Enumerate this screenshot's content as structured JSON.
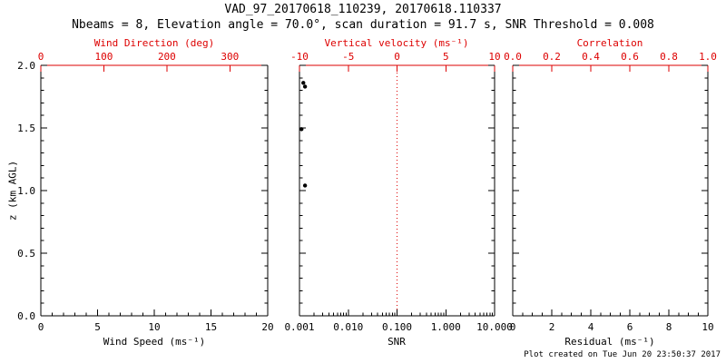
{
  "title": "VAD_97_20170618_110239, 20170618.110337",
  "subtitle": "Nbeams = 8, Elevation angle = 70.0°, scan duration = 91.7 s, SNR Threshold = 0.008",
  "footer": "Plot created on Tue Jun 20 23:50:37 2017",
  "colors": {
    "axis": "#000000",
    "secondary_axis": "#dd0000",
    "point": "#000000",
    "background": "#ffffff"
  },
  "chart_data": {
    "type": "scatter",
    "legend": "none",
    "grid": "off",
    "y_axis": {
      "label": "z (km AGL)",
      "min": 0,
      "max": 2,
      "ticks": [
        0,
        0.5,
        1,
        1.5,
        2
      ],
      "tick_labels": [
        "0.0",
        "0.5",
        "1.0",
        "1.5",
        "2.0"
      ],
      "minor_per_interval": 4
    },
    "panels": [
      {
        "name": "wind-speed",
        "x_label": "Wind Speed (ms⁻¹)",
        "top_label": "Wind Direction (deg)",
        "x_bottom": {
          "scale": "linear",
          "min": 0,
          "max": 20,
          "ticks": [
            0,
            5,
            10,
            15,
            20
          ],
          "tick_labels": [
            "0",
            "5",
            "10",
            "15",
            "20"
          ],
          "minor_per_interval": 4
        },
        "x_top": {
          "scale": "linear",
          "min": 0,
          "max": 360,
          "ticks": [
            0,
            100,
            200,
            300
          ],
          "tick_labels": [
            "0",
            "100",
            "200",
            "300"
          ]
        },
        "points": []
      },
      {
        "name": "snr",
        "x_label": "SNR",
        "top_label": "Vertical velocity (ms⁻¹)",
        "x_bottom": {
          "scale": "log",
          "min": 0.001,
          "max": 10,
          "ticks": [
            0.001,
            0.01,
            0.1,
            1,
            10
          ],
          "tick_labels": [
            "0.001",
            "0.010",
            "0.100",
            "1.000",
            "10.000"
          ]
        },
        "x_top": {
          "scale": "linear",
          "min": -10,
          "max": 10,
          "ticks": [
            -10,
            -5,
            0,
            5,
            10
          ],
          "tick_labels": [
            "-10",
            "-5",
            "0",
            "5",
            "10"
          ]
        },
        "reference_line_top_value": 0,
        "points": [
          {
            "x": 0.0012,
            "z": 1.86
          },
          {
            "x": 0.0013,
            "z": 1.83
          },
          {
            "x": 0.0011,
            "z": 1.49
          },
          {
            "x": 0.0013,
            "z": 1.04
          }
        ]
      },
      {
        "name": "residual",
        "x_label": "Residual (ms⁻¹)",
        "top_label": "Correlation",
        "x_bottom": {
          "scale": "linear",
          "min": 0,
          "max": 10,
          "ticks": [
            0,
            2,
            4,
            6,
            8,
            10
          ],
          "tick_labels": [
            "0",
            "2",
            "4",
            "6",
            "8",
            "10"
          ],
          "minor_per_interval": 3
        },
        "x_top": {
          "scale": "linear",
          "min": 0,
          "max": 1,
          "ticks": [
            0,
            0.2,
            0.4,
            0.6,
            0.8,
            1
          ],
          "tick_labels": [
            "0.0",
            "0.2",
            "0.4",
            "0.6",
            "0.8",
            "1.0"
          ]
        },
        "points": []
      }
    ]
  }
}
